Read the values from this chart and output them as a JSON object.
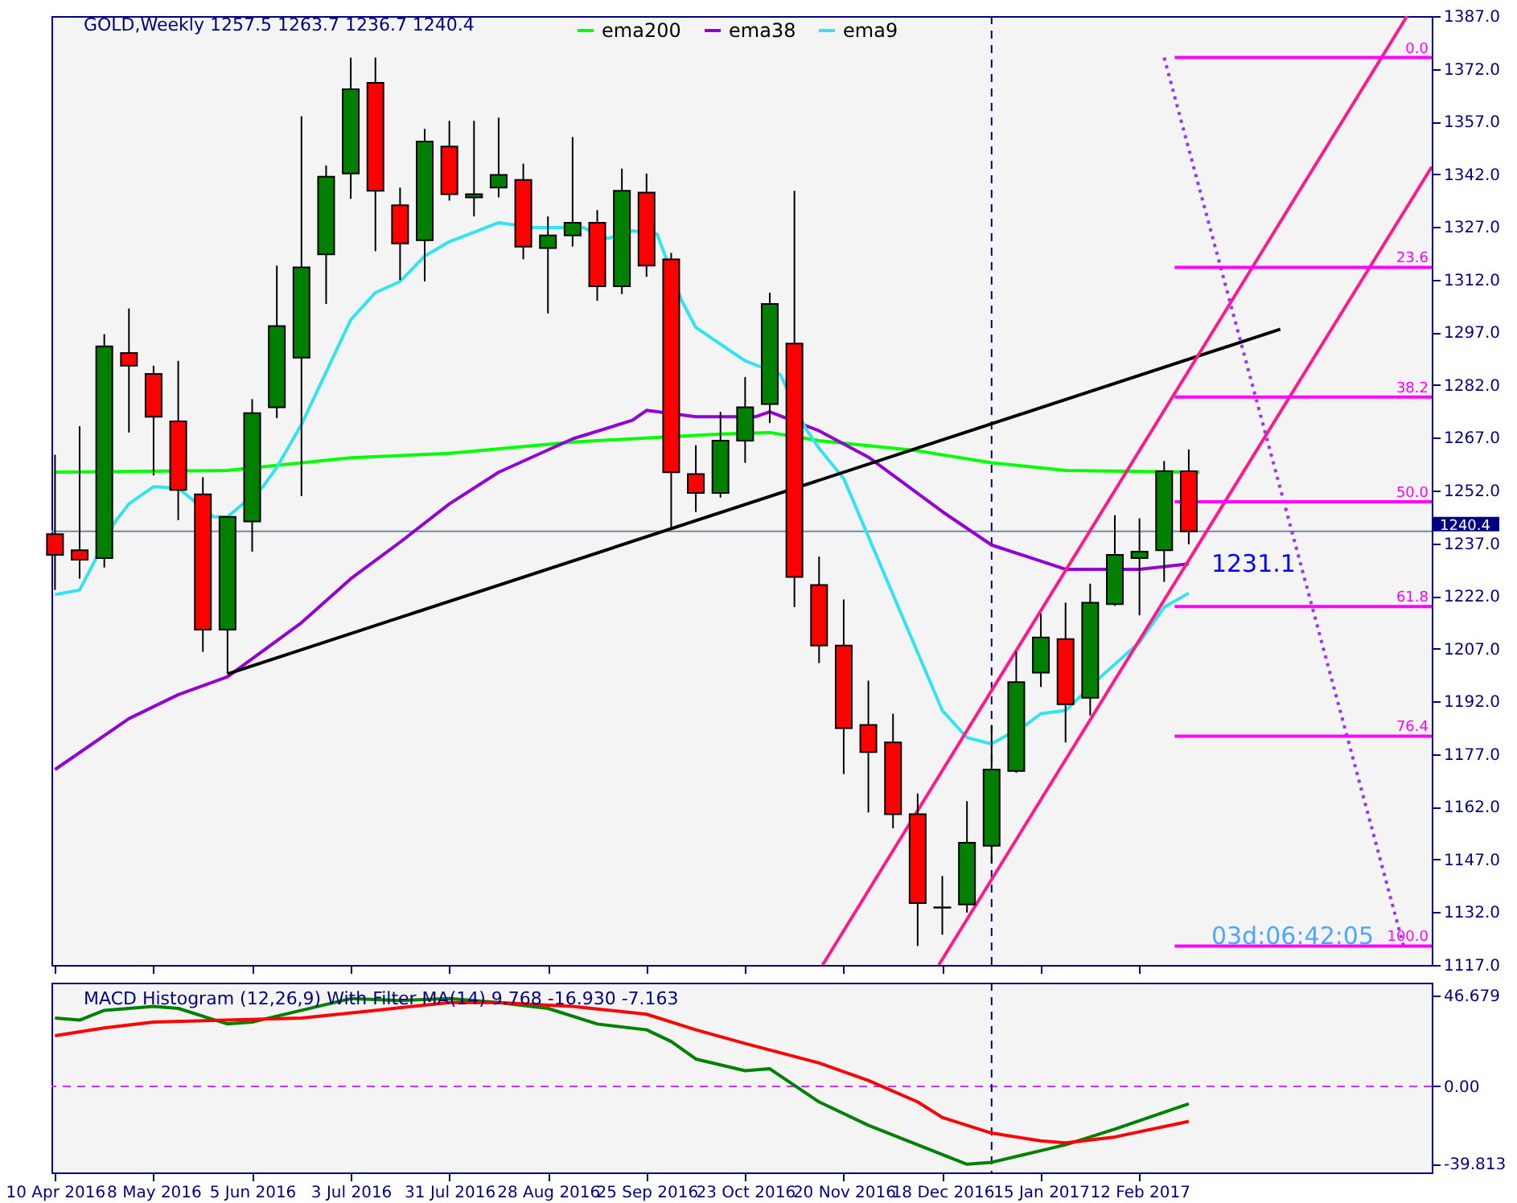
{
  "chart_data": [
    {
      "type": "candlestick",
      "title": "GOLD,Weekly  1257.5 1263.7 1236.7 1240.4",
      "x": [
        "2016-04-10",
        "2016-04-17",
        "2016-04-24",
        "2016-05-01",
        "2016-05-08",
        "2016-05-15",
        "2016-05-22",
        "2016-05-29",
        "2016-06-05",
        "2016-06-12",
        "2016-06-19",
        "2016-06-26",
        "2016-07-03",
        "2016-07-10",
        "2016-07-17",
        "2016-07-24",
        "2016-07-31",
        "2016-08-07",
        "2016-08-14",
        "2016-08-21",
        "2016-08-28",
        "2016-09-04",
        "2016-09-11",
        "2016-09-18",
        "2016-09-25",
        "2016-10-02",
        "2016-10-09",
        "2016-10-16",
        "2016-10-23",
        "2016-10-30",
        "2016-11-06",
        "2016-11-13",
        "2016-11-20",
        "2016-11-27",
        "2016-12-04",
        "2016-12-11",
        "2016-12-18",
        "2016-12-25",
        "2017-01-01",
        "2017-01-08",
        "2017-01-15",
        "2017-01-22",
        "2017-01-29",
        "2017-02-05",
        "2017-02-12",
        "2017-02-19",
        "2017-02-26"
      ],
      "ohlc": [
        [
          1239.6,
          1262.2,
          1223.7,
          1233.7
        ],
        [
          1235.0,
          1270.3,
          1226.9,
          1232.3
        ],
        [
          1232.8,
          1296.5,
          1230.1,
          1293.0
        ],
        [
          1291.1,
          1303.8,
          1268.5,
          1287.5
        ],
        [
          1285.2,
          1287.5,
          1256.3,
          1273.0
        ],
        [
          1271.7,
          1288.9,
          1243.6,
          1252.2
        ],
        [
          1250.9,
          1255.8,
          1206.1,
          1212.4
        ],
        [
          1212.4,
          1244.5,
          1199.8,
          1244.5
        ],
        [
          1243.2,
          1278.0,
          1234.6,
          1274.0
        ],
        [
          1275.7,
          1316.0,
          1272.6,
          1298.8
        ],
        [
          1289.8,
          1358.5,
          1250.4,
          1315.5
        ],
        [
          1319.2,
          1344.5,
          1305.1,
          1341.3
        ],
        [
          1342.2,
          1375.2,
          1335.0,
          1366.2
        ],
        [
          1368.0,
          1375.2,
          1320.1,
          1337.3
        ],
        [
          1333.2,
          1338.2,
          1311.9,
          1322.3
        ],
        [
          1323.2,
          1354.9,
          1311.5,
          1351.3
        ],
        [
          1349.9,
          1357.2,
          1334.5,
          1336.3
        ],
        [
          1335.4,
          1357.2,
          1330.0,
          1336.3
        ],
        [
          1338.2,
          1358.1,
          1335.4,
          1341.8
        ],
        [
          1340.4,
          1345.0,
          1317.8,
          1321.4
        ],
        [
          1321.0,
          1330.0,
          1302.4,
          1324.6
        ],
        [
          1324.6,
          1352.6,
          1321.4,
          1328.2
        ],
        [
          1328.2,
          1331.8,
          1306.0,
          1310.1
        ],
        [
          1310.1,
          1343.6,
          1307.9,
          1337.3
        ],
        [
          1336.8,
          1342.2,
          1312.8,
          1316.0
        ],
        [
          1317.8,
          1319.6,
          1240.9,
          1257.2
        ],
        [
          1256.7,
          1264.9,
          1245.9,
          1251.3
        ],
        [
          1251.3,
          1274.4,
          1250.0,
          1266.2
        ],
        [
          1266.2,
          1284.3,
          1259.9,
          1275.7
        ],
        [
          1276.6,
          1308.3,
          1271.2,
          1305.1
        ],
        [
          1293.8,
          1337.3,
          1218.8,
          1227.4
        ],
        [
          1225.1,
          1233.2,
          1202.9,
          1207.9
        ],
        [
          1207.9,
          1221.0,
          1171.3,
          1184.4
        ],
        [
          1185.3,
          1197.9,
          1160.4,
          1177.6
        ],
        [
          1180.3,
          1188.5,
          1155.9,
          1159.9
        ],
        [
          1159.9,
          1165.8,
          1122.4,
          1134.6
        ],
        [
          1133.3,
          1142.3,
          1125.6,
          1133.4
        ],
        [
          1134.2,
          1163.6,
          1131.9,
          1151.8
        ],
        [
          1150.9,
          1185.3,
          1145.9,
          1172.6
        ],
        [
          1172.2,
          1206.1,
          1171.7,
          1197.5
        ],
        [
          1200.2,
          1217.0,
          1196.1,
          1210.2
        ],
        [
          1209.7,
          1220.1,
          1180.3,
          1191.2
        ],
        [
          1193.0,
          1225.5,
          1188.0,
          1220.1
        ],
        [
          1219.7,
          1245.0,
          1219.2,
          1233.7
        ],
        [
          1232.8,
          1244.1,
          1216.5,
          1234.6
        ],
        [
          1235.0,
          1260.4,
          1226.0,
          1257.5
        ],
        [
          1257.5,
          1263.7,
          1236.7,
          1240.4
        ]
      ],
      "colors": [
        "#ff0000",
        "#ff0000",
        "#008000",
        "#ff0000",
        "#ff0000",
        "#ff0000",
        "#ff0000",
        "#008000",
        "#008000",
        "#008000",
        "#008000",
        "#008000",
        "#008000",
        "#ff0000",
        "#ff0000",
        "#008000",
        "#ff0000",
        "#008000",
        "#008000",
        "#ff0000",
        "#008000",
        "#008000",
        "#ff0000",
        "#008000",
        "#ff0000",
        "#ff0000",
        "#ff0000",
        "#008000",
        "#008000",
        "#008000",
        "#ff0000",
        "#ff0000",
        "#ff0000",
        "#ff0000",
        "#ff0000",
        "#ff0000",
        "#000000",
        "#008000",
        "#008000",
        "#008000",
        "#008000",
        "#ff0000",
        "#008000",
        "#008000",
        "#008000",
        "#008000",
        "#ff0000"
      ],
      "series": [
        {
          "name": "ema200",
          "type": "line",
          "color": "#00ff00",
          "x": [
            "2016-04-10",
            "2016-05-29",
            "2016-07-03",
            "2016-07-31",
            "2016-09-04",
            "2016-10-16",
            "2016-10-30",
            "2016-11-13",
            "2016-12-11",
            "2017-01-01",
            "2017-01-22",
            "2017-03-01"
          ],
          "values": [
            1257.2,
            1257.7,
            1261.3,
            1262.6,
            1265.8,
            1268.1,
            1268.5,
            1266.2,
            1263.3,
            1259.9,
            1257.7,
            1257.2
          ]
        },
        {
          "name": "ema38",
          "type": "line",
          "color": "#9400d3",
          "x": [
            "2016-04-10",
            "2016-05-01",
            "2016-05-15",
            "2016-05-29",
            "2016-06-19",
            "2016-07-03",
            "2016-07-17",
            "2016-07-31",
            "2016-08-14",
            "2016-09-04",
            "2016-09-21",
            "2016-09-25",
            "2016-10-09",
            "2016-10-26",
            "2016-10-30",
            "2016-11-13",
            "2016-11-27",
            "2016-12-18",
            "2017-01-01",
            "2017-01-22",
            "2017-02-12",
            "2017-02-26"
          ],
          "values": [
            1172.6,
            1187.1,
            1193.9,
            1199.0,
            1214.4,
            1226.9,
            1237.3,
            1248.2,
            1257.2,
            1266.7,
            1272.0,
            1274.8,
            1273.0,
            1273.0,
            1274.4,
            1269.0,
            1261.5,
            1246.0,
            1236.5,
            1229.6,
            1229.6,
            1231.1
          ]
        },
        {
          "name": "ema9",
          "type": "line",
          "color": "#33e3f0",
          "x": [
            "2016-04-10",
            "2016-04-17",
            "2016-04-27",
            "2016-05-01",
            "2016-05-08",
            "2016-05-15",
            "2016-05-25",
            "2016-05-29",
            "2016-06-08",
            "2016-06-12",
            "2016-06-19",
            "2016-07-03",
            "2016-07-10",
            "2016-07-17",
            "2016-07-24",
            "2016-07-31",
            "2016-08-14",
            "2016-08-24",
            "2016-09-07",
            "2016-09-14",
            "2016-09-21",
            "2016-09-28",
            "2016-10-05",
            "2016-10-09",
            "2016-10-23",
            "2016-11-02",
            "2016-11-09",
            "2016-11-13",
            "2016-11-20",
            "2016-12-04",
            "2016-12-18",
            "2016-12-25",
            "2017-01-01",
            "2017-01-11",
            "2017-01-15",
            "2017-01-22",
            "2017-02-01",
            "2017-02-12",
            "2017-02-19",
            "2017-02-26"
          ],
          "values": [
            1222.4,
            1223.7,
            1243.0,
            1248.2,
            1253.1,
            1252.7,
            1244.5,
            1244.5,
            1253.0,
            1258.6,
            1270.8,
            1300.6,
            1308.3,
            1311.5,
            1318.7,
            1322.8,
            1328.2,
            1326.8,
            1326.8,
            1323.7,
            1325.9,
            1325.0,
            1306.0,
            1298.4,
            1288.9,
            1285.0,
            1270.0,
            1264.0,
            1255.4,
            1222.4,
            1189.4,
            1181.7,
            1179.9,
            1185.5,
            1188.5,
            1189.4,
            1199.0,
            1208.8,
            1218.8,
            1222.8
          ]
        },
        {
          "type": "line",
          "color": "#000000",
          "x": [
            "2016-05-29",
            "2017-03-24"
          ],
          "values": [
            1199.8,
            1297.9
          ]
        },
        {
          "type": "line",
          "color": "#ff1a8c",
          "x": [
            "2016-11-14",
            "2017-04-29"
          ],
          "values": [
            1117,
            1387
          ]
        },
        {
          "type": "line",
          "color": "#ff1a8c",
          "x": [
            "2016-12-17",
            "2017-05-06"
          ],
          "values": [
            1117,
            1344.1
          ]
        },
        {
          "type": "line",
          "color": "#9933ff",
          "line_style": "dotted",
          "x": [
            "2017-02-19",
            "2017-04-28"
          ],
          "values": [
            1375.2,
            1122.4
          ]
        },
        {
          "type": "line",
          "color": "#ff00ff",
          "x": [
            "2017-02-22",
            "2017-05-06"
          ],
          "values": [
            1375.2,
            1375.2
          ]
        },
        {
          "type": "line",
          "color": "#ff00ff",
          "x": [
            "2017-02-22",
            "2017-05-06"
          ],
          "values": [
            1315.5,
            1315.5
          ]
        },
        {
          "type": "line",
          "color": "#ff00ff",
          "x": [
            "2017-02-22",
            "2017-05-06"
          ],
          "values": [
            1278.6,
            1278.6
          ]
        },
        {
          "type": "line",
          "color": "#ff00ff",
          "x": [
            "2017-02-22",
            "2017-05-06"
          ],
          "values": [
            1248.8,
            1248.8
          ]
        },
        {
          "type": "line",
          "color": "#ff00ff",
          "x": [
            "2017-02-22",
            "2017-05-06"
          ],
          "values": [
            1219.0,
            1219.0
          ]
        },
        {
          "type": "line",
          "color": "#ff00ff",
          "x": [
            "2017-02-22",
            "2017-05-06"
          ],
          "values": [
            1182.1,
            1182.1
          ]
        },
        {
          "type": "line",
          "color": "#ff00ff",
          "x": [
            "2017-02-22",
            "2017-05-06"
          ],
          "values": [
            1122.4,
            1122.4
          ]
        }
      ],
      "annotations": [
        {
          "text": "0.0",
          "x": "2017-05-06",
          "y": 1375.2
        },
        {
          "text": "23.6",
          "x": "2017-05-06",
          "y": 1315.5
        },
        {
          "text": "38.2",
          "x": "2017-05-06",
          "y": 1278.6
        },
        {
          "text": "50.0",
          "x": "2017-05-06",
          "y": 1248.8
        },
        {
          "text": "61.8",
          "x": "2017-05-06",
          "y": 1219.0
        },
        {
          "text": "76.4",
          "x": "2017-05-06",
          "y": 1182.1
        },
        {
          "text": "100.0",
          "x": "2017-05-06",
          "y": 1122.4
        },
        {
          "text": "1231.1",
          "x": "2017-02-26",
          "y": 1231.1
        },
        "03d:06:42:05"
      ],
      "ref_lines": [
        {
          "axis": "y",
          "value": 1240.4,
          "label": "1240.4",
          "color": "#778899"
        },
        {
          "axis": "x",
          "value": "2017-01-01",
          "color": "#000080",
          "line_style": "dashed"
        }
      ],
      "xlim": [
        "2016-04-09",
        "2017-05-06"
      ],
      "ylim": [
        1117,
        1387
      ],
      "yticks": [
        {
          "value": 1387,
          "label": "1387.0"
        },
        {
          "value": 1372,
          "label": "1372.0"
        },
        {
          "value": 1357,
          "label": "1357.0"
        },
        {
          "value": 1342,
          "label": "1342.0"
        },
        {
          "value": 1327,
          "label": "1327.0"
        },
        {
          "value": 1312,
          "label": "1312.0"
        },
        {
          "value": 1297,
          "label": "1297.0"
        },
        {
          "value": 1282,
          "label": "1282.0"
        },
        {
          "value": 1267,
          "label": "1267.0"
        },
        {
          "value": 1252,
          "label": "1252.0"
        },
        {
          "value": 1237,
          "label": "1237.0"
        },
        {
          "value": 1222,
          "label": "1222.0"
        },
        {
          "value": 1207,
          "label": "1207.0"
        },
        {
          "value": 1192,
          "label": "1192.0"
        },
        {
          "value": 1177,
          "label": "1177.0"
        },
        {
          "value": 1162,
          "label": "1162.0"
        },
        {
          "value": 1147,
          "label": "1147.0"
        },
        {
          "value": 1132,
          "label": "1132.0"
        },
        {
          "value": 1117,
          "label": "1117.0"
        }
      ],
      "xticks": [
        {
          "value": "2016-04-10",
          "label": null
        },
        {
          "value": "2016-05-08",
          "label": null
        },
        {
          "value": "2016-06-05",
          "label": null
        },
        {
          "value": "2016-07-03",
          "label": null
        },
        {
          "value": "2016-07-31",
          "label": null
        },
        {
          "value": "2016-08-28",
          "label": null
        },
        {
          "value": "2016-09-25",
          "label": null
        },
        {
          "value": "2016-10-23",
          "label": null
        },
        {
          "value": "2016-11-20",
          "label": null
        },
        {
          "value": "2016-12-18",
          "label": null
        },
        {
          "value": "2017-01-15",
          "label": null
        },
        {
          "value": "2017-02-12",
          "label": null
        }
      ],
      "tick_labels": "y",
      "legend": "top"
    },
    {
      "type": "line",
      "title": "MACD Histogram (12,26,9) With Filter MA(14) 9.768 -16.930 -7.163",
      "series": [
        {
          "color": "#008000",
          "x": [
            "2016-04-10",
            "2016-04-17",
            "2016-04-24",
            "2016-05-08",
            "2016-05-15",
            "2016-05-29",
            "2016-06-05",
            "2016-06-19",
            "2016-07-03",
            "2016-07-17",
            "2016-07-31",
            "2016-08-14",
            "2016-08-28",
            "2016-09-11",
            "2016-09-25",
            "2016-10-02",
            "2016-10-09",
            "2016-10-23",
            "2016-10-30",
            "2016-11-13",
            "2016-11-27",
            "2016-12-11",
            "2016-12-25",
            "2017-01-01",
            "2017-01-15",
            "2017-01-22",
            "2017-02-05",
            "2017-02-26"
          ],
          "values": [
            35,
            34,
            39,
            41,
            40,
            32,
            33,
            39,
            45,
            44,
            45,
            43,
            40,
            32,
            29,
            23,
            14,
            8,
            9,
            -8,
            -20,
            -30,
            -40,
            -39,
            -33,
            -30,
            -22,
            -9
          ]
        },
        {
          "color": "#ff0000",
          "x": [
            "2016-04-10",
            "2016-04-24",
            "2016-05-08",
            "2016-05-29",
            "2016-06-19",
            "2016-07-10",
            "2016-07-31",
            "2016-08-14",
            "2016-09-04",
            "2016-09-25",
            "2016-10-09",
            "2016-10-23",
            "2016-11-13",
            "2016-11-27",
            "2016-12-11",
            "2016-12-18",
            "2017-01-01",
            "2017-01-15",
            "2017-01-22",
            "2017-02-05",
            "2017-02-26"
          ],
          "values": [
            26,
            30,
            33,
            34,
            35,
            39,
            43,
            43,
            41,
            37,
            29,
            22,
            12,
            3,
            -8,
            -16,
            -24,
            -28,
            -29,
            -26,
            -18
          ]
        }
      ],
      "ref_lines": [
        {
          "axis": "y",
          "value": 0,
          "color": "#cc33ff",
          "line_style": "dashed"
        },
        {
          "axis": "x",
          "value": "2017-01-01",
          "color": "#000080",
          "line_style": "dashed"
        }
      ],
      "xlim": [
        "2016-04-09",
        "2017-05-06"
      ],
      "xticks": [
        {
          "value": "2016-04-10",
          "label": "10 Apr 2016"
        },
        {
          "value": "2016-05-08",
          "label": "8 May 2016"
        },
        {
          "value": "2016-06-05",
          "label": "5 Jun 2016"
        },
        {
          "value": "2016-07-03",
          "label": "3 Jul 2016"
        },
        {
          "value": "2016-07-31",
          "label": "31 Jul 2016"
        },
        {
          "value": "2016-08-28",
          "label": "28 Aug 2016"
        },
        {
          "value": "2016-09-25",
          "label": "25 Sep 2016"
        },
        {
          "value": "2016-10-23",
          "label": "23 Oct 2016"
        },
        {
          "value": "2016-11-20",
          "label": "20 Nov 2016"
        },
        {
          "value": "2016-12-18",
          "label": "18 Dec 2016"
        },
        {
          "value": "2017-01-15",
          "label": "15 Jan 2017"
        },
        {
          "value": "2017-02-12",
          "label": "12 Feb 2017"
        }
      ],
      "ylim": [
        -44.2,
        53.2
      ],
      "yticks": [
        {
          "value": 46.679,
          "label": "46.679"
        },
        {
          "value": 0,
          "label": "0.00"
        },
        {
          "value": -39.813,
          "label": "-39.813"
        }
      ]
    }
  ]
}
